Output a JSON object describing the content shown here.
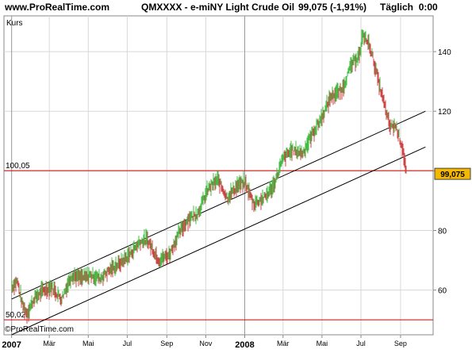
{
  "header": {
    "site": "www.ProRealTime.com",
    "title": "QMXXXX - e-miNY Light Crude Oil",
    "value": "99,075 (-1,91%)",
    "period": "Täglich",
    "time": "0:00"
  },
  "chart_data": {
    "type": "line",
    "ylabel": "Kurs",
    "watermark": "©ProRealTime.com",
    "ylim": [
      45,
      152
    ],
    "y_ticks": [
      60,
      80,
      100,
      120,
      140
    ],
    "x_ticks": [
      {
        "label": "2007",
        "bold": true
      },
      {
        "label": "Mär",
        "bold": false
      },
      {
        "label": "Mai",
        "bold": false
      },
      {
        "label": "Jul",
        "bold": false
      },
      {
        "label": "Sep",
        "bold": false
      },
      {
        "label": "Nov",
        "bold": false
      },
      {
        "label": "2008",
        "bold": true
      },
      {
        "label": "Mär",
        "bold": false
      },
      {
        "label": "Mai",
        "bold": false
      },
      {
        "label": "Jul",
        "bold": false
      },
      {
        "label": "Sep",
        "bold": false
      }
    ],
    "series": [
      {
        "x": [
          "2007-01-01",
          "2007-01-10",
          "2007-01-18",
          "2007-01-25",
          "2007-02-05",
          "2007-02-20",
          "2007-03-05",
          "2007-03-20",
          "2007-04-05",
          "2007-04-20",
          "2007-05-05",
          "2007-05-20",
          "2007-06-05",
          "2007-06-20",
          "2007-07-05",
          "2007-07-20",
          "2007-08-01",
          "2007-08-20",
          "2007-09-05",
          "2007-09-20",
          "2007-10-05",
          "2007-10-20",
          "2007-11-05",
          "2007-11-20",
          "2007-12-05",
          "2007-12-20",
          "2008-01-02",
          "2008-01-15",
          "2008-02-01",
          "2008-02-15",
          "2008-03-01",
          "2008-03-15",
          "2008-04-01",
          "2008-04-15",
          "2008-05-01",
          "2008-05-15",
          "2008-06-01",
          "2008-06-15",
          "2008-07-01",
          "2008-07-03",
          "2008-07-15",
          "2008-08-01",
          "2008-08-15",
          "2008-08-25",
          "2008-09-05",
          "2008-09-10"
        ],
        "values": [
          61,
          63,
          55,
          52,
          57,
          60,
          61,
          57,
          65,
          64,
          65,
          64,
          67,
          69,
          72,
          76,
          77,
          70,
          72,
          79,
          84,
          86,
          94,
          97,
          91,
          95,
          96,
          89,
          91,
          95,
          104,
          107,
          106,
          112,
          118,
          125,
          127,
          135,
          140,
          146,
          142,
          127,
          115,
          115,
          107,
          99
        ]
      }
    ],
    "reference_lines": [
      {
        "label": "100,05",
        "value": 100.05,
        "color": "#cc0000"
      },
      {
        "label": "50,021",
        "value": 50.021,
        "color": "#cc0000"
      }
    ],
    "trend_lines": [
      {
        "from": [
          "2007-01-01",
          57
        ],
        "to": [
          "2008-10-10",
          120
        ]
      },
      {
        "from": [
          "2007-01-01",
          45
        ],
        "to": [
          "2008-10-10",
          108
        ]
      }
    ],
    "last_price_label": "99,075",
    "colors": {
      "up": "#44bb44",
      "down": "#cc4444",
      "grid": "#d8d8d8",
      "reference": "#cc0000",
      "trend": "#000000",
      "price_box": "#f5b800"
    }
  }
}
